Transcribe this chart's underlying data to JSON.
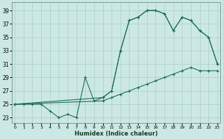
{
  "xlabel": "Humidex (Indice chaleur)",
  "bg_color": "#cce8e4",
  "grid_color": "#aaccca",
  "line_color": "#1a6b5a",
  "x_ticks": [
    0,
    1,
    2,
    3,
    4,
    5,
    6,
    7,
    8,
    9,
    10,
    11,
    12,
    13,
    14,
    15,
    16,
    17,
    18,
    19,
    20,
    21,
    22,
    23
  ],
  "y_ticks": [
    23,
    25,
    27,
    29,
    31,
    33,
    35,
    37,
    39
  ],
  "xlim": [
    -0.3,
    23.3
  ],
  "ylim": [
    22.2,
    40.2
  ],
  "line1_x": [
    0,
    1,
    2,
    3,
    4,
    5,
    6,
    7,
    8,
    9,
    10,
    11,
    12,
    13,
    14,
    15,
    16,
    17,
    18,
    19,
    20,
    21,
    22,
    23
  ],
  "line1_y": [
    25,
    25,
    25,
    25,
    24,
    23,
    23.5,
    23,
    29,
    25.5,
    26,
    27,
    33,
    37.5,
    38,
    39,
    39,
    38.5,
    36,
    38,
    37.5,
    36,
    35,
    31
  ],
  "line2_x": [
    0,
    10,
    11,
    12,
    13,
    14,
    15,
    16,
    17,
    18,
    19,
    20,
    21,
    22,
    23
  ],
  "line2_y": [
    25,
    26,
    27,
    33,
    37.5,
    38,
    39,
    39,
    38.5,
    36,
    38,
    37.5,
    36,
    35,
    31
  ],
  "line3_x": [
    0,
    10,
    11,
    12,
    13,
    14,
    15,
    16,
    17,
    18,
    19,
    20,
    21,
    22,
    23
  ],
  "line3_y": [
    25,
    25.5,
    26,
    26.5,
    27,
    27.5,
    28,
    28.5,
    29,
    29.5,
    30,
    30.5,
    30,
    30,
    30
  ]
}
